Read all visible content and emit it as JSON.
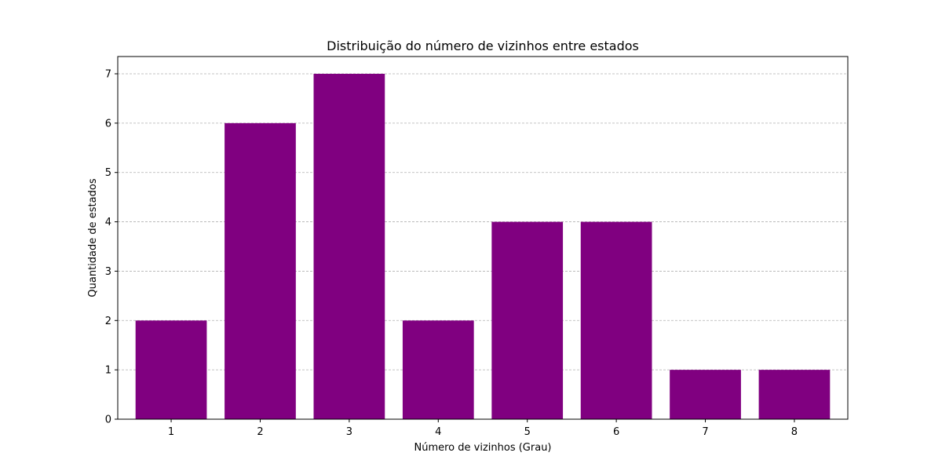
{
  "colors": {
    "bar": "#800080",
    "grid": "#b0b0b0",
    "axis": "#000000",
    "background": "#ffffff"
  },
  "chart_data": {
    "type": "bar",
    "title": "Distribuição do número de vizinhos entre estados",
    "xlabel": "Número de vizinhos (Grau)",
    "ylabel": "Quantidade de estados",
    "categories": [
      "1",
      "2",
      "3",
      "4",
      "5",
      "6",
      "7",
      "8"
    ],
    "values": [
      2,
      6,
      7,
      2,
      4,
      4,
      1,
      1
    ],
    "ylim": [
      0,
      7.35
    ],
    "yticks": [
      0,
      1,
      2,
      3,
      4,
      5,
      6,
      7
    ],
    "grid": "horizontal dashed",
    "legend": "none"
  }
}
